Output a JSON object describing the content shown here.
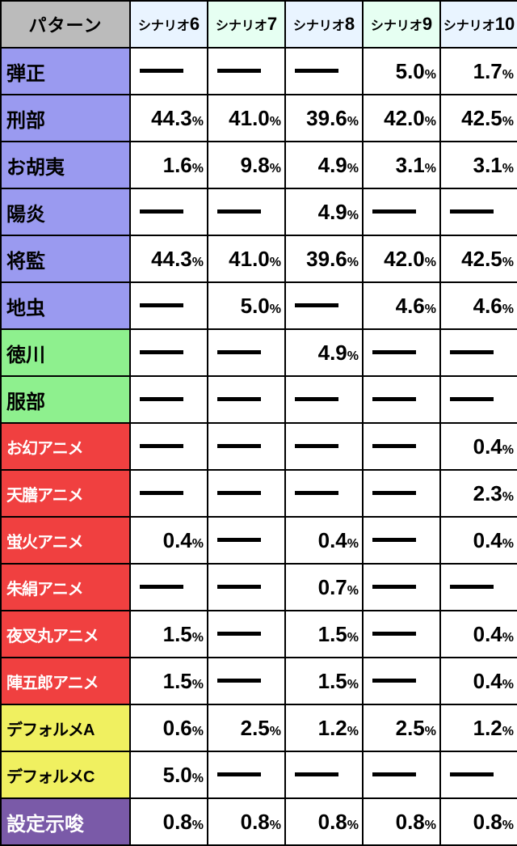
{
  "header": {
    "pattern_label": "パターン",
    "columns": [
      {
        "prefix": "シナリオ",
        "num": "6",
        "bg": "#e9f4ff"
      },
      {
        "prefix": "シナリオ",
        "num": "7",
        "bg": "#e6fff2"
      },
      {
        "prefix": "シナリオ",
        "num": "8",
        "bg": "#e9f4ff"
      },
      {
        "prefix": "シナリオ",
        "num": "9",
        "bg": "#e6fff2"
      },
      {
        "prefix": "シナリオ",
        "num": "10",
        "bg": "#e9f4ff"
      }
    ]
  },
  "row_groups": {
    "purple": "#9a9af0",
    "green": "#8ef08e",
    "red": "#f04040",
    "yellow": "#f0f060",
    "darkpurple": "#7a5aa8"
  },
  "rows": [
    {
      "label": "弾正",
      "group": "purple",
      "text": "#000",
      "values": [
        null,
        null,
        null,
        "5.0",
        "1.7"
      ]
    },
    {
      "label": "刑部",
      "group": "purple",
      "text": "#000",
      "values": [
        "44.3",
        "41.0",
        "39.6",
        "42.0",
        "42.5"
      ]
    },
    {
      "label": "お胡夷",
      "group": "purple",
      "text": "#000",
      "values": [
        "1.6",
        "9.8",
        "4.9",
        "3.1",
        "3.1"
      ]
    },
    {
      "label": "陽炎",
      "group": "purple",
      "text": "#000",
      "values": [
        null,
        null,
        "4.9",
        null,
        null
      ]
    },
    {
      "label": "将監",
      "group": "purple",
      "text": "#000",
      "values": [
        "44.3",
        "41.0",
        "39.6",
        "42.0",
        "42.5"
      ]
    },
    {
      "label": "地虫",
      "group": "purple",
      "text": "#000",
      "values": [
        null,
        "5.0",
        null,
        "4.6",
        "4.6"
      ]
    },
    {
      "label": "徳川",
      "group": "green",
      "text": "#000",
      "values": [
        null,
        null,
        "4.9",
        null,
        null
      ]
    },
    {
      "label": "服部",
      "group": "green",
      "text": "#000",
      "values": [
        null,
        null,
        null,
        null,
        null
      ]
    },
    {
      "label": "お幻アニメ",
      "group": "red",
      "text": "#fff",
      "small": true,
      "values": [
        null,
        null,
        null,
        null,
        "0.4"
      ]
    },
    {
      "label": "天膳アニメ",
      "group": "red",
      "text": "#fff",
      "small": true,
      "values": [
        null,
        null,
        null,
        null,
        "2.3"
      ]
    },
    {
      "label": "蛍火アニメ",
      "group": "red",
      "text": "#fff",
      "small": true,
      "values": [
        "0.4",
        null,
        "0.4",
        null,
        "0.4"
      ]
    },
    {
      "label": "朱絹アニメ",
      "group": "red",
      "text": "#fff",
      "small": true,
      "values": [
        null,
        null,
        "0.7",
        null,
        null
      ]
    },
    {
      "label": "夜叉丸アニメ",
      "group": "red",
      "text": "#fff",
      "small": true,
      "values": [
        "1.5",
        null,
        "1.5",
        null,
        "0.4"
      ]
    },
    {
      "label": "陣五郎アニメ",
      "group": "red",
      "text": "#fff",
      "small": true,
      "values": [
        "1.5",
        null,
        "1.5",
        null,
        "0.4"
      ]
    },
    {
      "label": "デフォルメA",
      "group": "yellow",
      "text": "#000",
      "small": true,
      "values": [
        "0.6",
        "2.5",
        "1.2",
        "2.5",
        "1.2"
      ]
    },
    {
      "label": "デフォルメC",
      "group": "yellow",
      "text": "#000",
      "small": true,
      "values": [
        "5.0",
        null,
        null,
        null,
        null
      ]
    },
    {
      "label": "設定示唆",
      "group": "darkpurple",
      "text": "#fff",
      "values": [
        "0.8",
        "0.8",
        "0.8",
        "0.8",
        "0.8"
      ]
    }
  ]
}
